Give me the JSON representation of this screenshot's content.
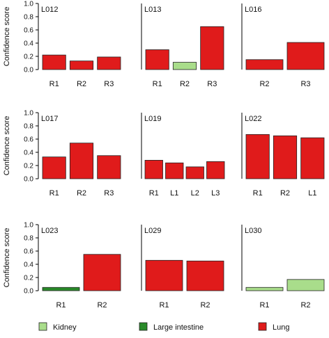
{
  "y_axis_label": "Confidence score",
  "colors": {
    "Kidney": "#a9dd8b",
    "Large intestine": "#2a8b2a",
    "Lung": "#e01b1b",
    "bar_stroke": "#222222",
    "axis": "#000000"
  },
  "legend": {
    "items": [
      {
        "label": "Kidney",
        "color": "#a9dd8b"
      },
      {
        "label": "Large intestine",
        "color": "#2a8b2a"
      },
      {
        "label": "Lung",
        "color": "#e01b1b"
      }
    ]
  },
  "chart_data": [
    {
      "type": "bar",
      "title": "L012",
      "ylabel": "Confidence score",
      "ylim": [
        0,
        1
      ],
      "yticks": [
        "0.0",
        "0.2",
        "0.4",
        "0.6",
        "0.8",
        "1.0"
      ],
      "categories": [
        "R1",
        "R2",
        "R3"
      ],
      "values": [
        0.22,
        0.13,
        0.19
      ],
      "tissue": [
        "Lung",
        "Lung",
        "Lung"
      ]
    },
    {
      "type": "bar",
      "title": "L013",
      "ylim": [
        0,
        1
      ],
      "categories": [
        "R1",
        "R2",
        "R3"
      ],
      "values": [
        0.3,
        0.11,
        0.65
      ],
      "tissue": [
        "Lung",
        "Kidney",
        "Lung"
      ]
    },
    {
      "type": "bar",
      "title": "L016",
      "ylim": [
        0,
        1
      ],
      "categories": [
        "R2",
        "R3"
      ],
      "values": [
        0.15,
        0.41
      ],
      "tissue": [
        "Lung",
        "Lung"
      ]
    },
    {
      "type": "bar",
      "title": "L017",
      "ylabel": "Confidence score",
      "ylim": [
        0,
        1
      ],
      "yticks": [
        "0.0",
        "0.2",
        "0.4",
        "0.6",
        "0.8",
        "1.0"
      ],
      "categories": [
        "R1",
        "R2",
        "R3"
      ],
      "values": [
        0.33,
        0.54,
        0.35
      ],
      "tissue": [
        "Lung",
        "Lung",
        "Lung"
      ]
    },
    {
      "type": "bar",
      "title": "L019",
      "ylim": [
        0,
        1
      ],
      "categories": [
        "R1",
        "L1",
        "L2",
        "L3"
      ],
      "values": [
        0.28,
        0.24,
        0.18,
        0.26
      ],
      "tissue": [
        "Lung",
        "Lung",
        "Lung",
        "Lung"
      ]
    },
    {
      "type": "bar",
      "title": "L022",
      "ylim": [
        0,
        1
      ],
      "categories": [
        "R1",
        "R2",
        "L1"
      ],
      "values": [
        0.67,
        0.65,
        0.62
      ],
      "tissue": [
        "Lung",
        "Lung",
        "Lung"
      ]
    },
    {
      "type": "bar",
      "title": "L023",
      "ylabel": "Confidence score",
      "ylim": [
        0,
        1
      ],
      "yticks": [
        "0.0",
        "0.2",
        "0.4",
        "0.6",
        "0.8",
        "1.0"
      ],
      "categories": [
        "R1",
        "R2"
      ],
      "values": [
        0.05,
        0.55
      ],
      "tissue": [
        "Large intestine",
        "Lung"
      ]
    },
    {
      "type": "bar",
      "title": "L029",
      "ylim": [
        0,
        1
      ],
      "categories": [
        "R1",
        "R2"
      ],
      "values": [
        0.46,
        0.45
      ],
      "tissue": [
        "Lung",
        "Lung"
      ]
    },
    {
      "type": "bar",
      "title": "L030",
      "ylim": [
        0,
        1
      ],
      "categories": [
        "R1",
        "R2"
      ],
      "values": [
        0.05,
        0.17
      ],
      "tissue": [
        "Kidney",
        "Kidney"
      ]
    }
  ]
}
